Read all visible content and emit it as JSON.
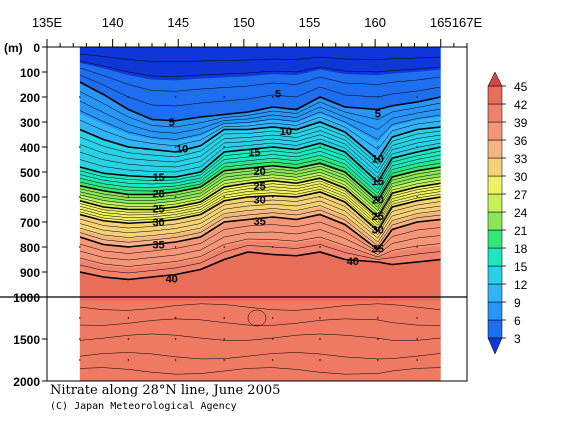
{
  "chart_data": {
    "type": "heatmap",
    "variant": "filled-contour-section",
    "title": "Nitrate along 28°N line, June 2005",
    "credit": "(C) Japan Meteorological Agency",
    "x_axis": {
      "position": "top",
      "range": [
        135,
        167
      ],
      "ticks": [
        {
          "value": 135,
          "label": "135E"
        },
        {
          "value": 140,
          "label": "140"
        },
        {
          "value": 145,
          "label": "145"
        },
        {
          "value": 150,
          "label": "150"
        },
        {
          "value": 155,
          "label": "155"
        },
        {
          "value": 160,
          "label": "160"
        },
        {
          "value": 165,
          "label": "165"
        },
        {
          "value": 167,
          "label": "167E"
        }
      ],
      "data_range": [
        137.5,
        165
      ]
    },
    "y_axis": {
      "unit_label": "(m)",
      "range": [
        0,
        2000
      ],
      "inverted": true,
      "break_depth": 1000,
      "ticks": [
        {
          "value": 0,
          "label": "0"
        },
        {
          "value": 100,
          "label": "100"
        },
        {
          "value": 200,
          "label": "200"
        },
        {
          "value": 300,
          "label": "300"
        },
        {
          "value": 400,
          "label": "400"
        },
        {
          "value": 500,
          "label": "500"
        },
        {
          "value": 600,
          "label": "600"
        },
        {
          "value": 700,
          "label": "700"
        },
        {
          "value": 800,
          "label": "800"
        },
        {
          "value": 900,
          "label": "900"
        },
        {
          "value": 1000,
          "label": "1000"
        },
        {
          "value": 1500,
          "label": "1500"
        },
        {
          "value": 2000,
          "label": "2000"
        }
      ]
    },
    "colorbar": {
      "position": "right",
      "levels": [
        3,
        6,
        9,
        12,
        15,
        18,
        21,
        24,
        27,
        30,
        33,
        36,
        39,
        42,
        45
      ],
      "labels": [
        "3",
        "6",
        "9",
        "12",
        "15",
        "18",
        "21",
        "24",
        "27",
        "30",
        "33",
        "36",
        "39",
        "42",
        "45"
      ],
      "colors": [
        "#0f37d7",
        "#1e6ef0",
        "#2896f5",
        "#32b4fa",
        "#28d2e6",
        "#1ee6be",
        "#32e678",
        "#8ce65a",
        "#c8f05a",
        "#f0f064",
        "#f5d278",
        "#f5b482",
        "#f59678",
        "#f0826e",
        "#e86e5a",
        "#d24646"
      ],
      "line_contour_color": "#000000"
    },
    "contours": [
      {
        "value": 5,
        "depth_m": [
          140,
          190,
          250,
          290,
          295,
          280,
          270,
          260,
          240,
          250,
          200,
          240,
          250,
          235,
          220,
          200
        ],
        "labels": [
          {
            "text": "5",
            "lon": 144.5,
            "depth": 300
          },
          {
            "text": "5",
            "lon": 152.6,
            "depth": 185
          },
          {
            "text": "5",
            "lon": 160.2,
            "depth": 265
          }
        ]
      },
      {
        "value": 10,
        "depth_m": [
          330,
          370,
          400,
          410,
          420,
          395,
          330,
          330,
          320,
          330,
          300,
          340,
          450,
          360,
          330,
          320
        ],
        "labels": [
          {
            "text": "10",
            "lon": 145.3,
            "depth": 405
          },
          {
            "text": "10",
            "lon": 153.2,
            "depth": 335
          },
          {
            "text": "10",
            "lon": 160.2,
            "depth": 445
          }
        ]
      },
      {
        "value": 15,
        "depth_m": [
          480,
          505,
          515,
          520,
          520,
          500,
          420,
          410,
          400,
          410,
          385,
          420,
          540,
          445,
          420,
          400
        ],
        "labels": [
          {
            "text": "15",
            "lon": 143.5,
            "depth": 520
          },
          {
            "text": "15",
            "lon": 150.8,
            "depth": 420
          },
          {
            "text": "15",
            "lon": 160.2,
            "depth": 535
          }
        ]
      },
      {
        "value": 20,
        "depth_m": [
          555,
          575,
          590,
          590,
          580,
          560,
          495,
          485,
          475,
          485,
          465,
          500,
          615,
          520,
          495,
          480
        ],
        "labels": [
          {
            "text": "20",
            "lon": 143.5,
            "depth": 585
          },
          {
            "text": "20",
            "lon": 151.2,
            "depth": 495
          },
          {
            "text": "20",
            "lon": 160.2,
            "depth": 610
          }
        ]
      },
      {
        "value": 25,
        "depth_m": [
          615,
          640,
          650,
          650,
          640,
          620,
          560,
          545,
          535,
          545,
          525,
          565,
          680,
          585,
          560,
          545
        ],
        "labels": [
          {
            "text": "25",
            "lon": 143.5,
            "depth": 645
          },
          {
            "text": "25",
            "lon": 151.2,
            "depth": 555
          },
          {
            "text": "25",
            "lon": 160.2,
            "depth": 675
          }
        ]
      },
      {
        "value": 30,
        "depth_m": [
          670,
          695,
          705,
          700,
          690,
          670,
          615,
          600,
          595,
          600,
          580,
          620,
          735,
          640,
          615,
          600
        ],
        "labels": [
          {
            "text": "30",
            "lon": 143.5,
            "depth": 700
          },
          {
            "text": "30",
            "lon": 151.2,
            "depth": 610
          },
          {
            "text": "30",
            "lon": 160.2,
            "depth": 730
          }
        ]
      },
      {
        "value": 35,
        "depth_m": [
          760,
          790,
          800,
          790,
          780,
          760,
          700,
          690,
          680,
          690,
          670,
          710,
          810,
          730,
          700,
          690
        ],
        "labels": [
          {
            "text": "35",
            "lon": 143.5,
            "depth": 790
          },
          {
            "text": "35",
            "lon": 151.2,
            "depth": 695
          },
          {
            "text": "35",
            "lon": 160.2,
            "depth": 805
          }
        ]
      },
      {
        "value": 40,
        "depth_m": [
          900,
          920,
          930,
          920,
          910,
          890,
          850,
          820,
          830,
          835,
          820,
          850,
          860,
          870,
          860,
          850
        ],
        "labels": [
          {
            "text": "40",
            "lon": 144.5,
            "depth": 925
          },
          {
            "text": "40",
            "lon": 158.3,
            "depth": 855
          }
        ]
      }
    ],
    "contour_lons": [
      137.5,
      139.3,
      141.2,
      143,
      144.8,
      146.7,
      148.5,
      150.3,
      152.2,
      154,
      155.8,
      157.7,
      160.2,
      161.3,
      163.2,
      165
    ],
    "grid": false,
    "legend": "right"
  }
}
